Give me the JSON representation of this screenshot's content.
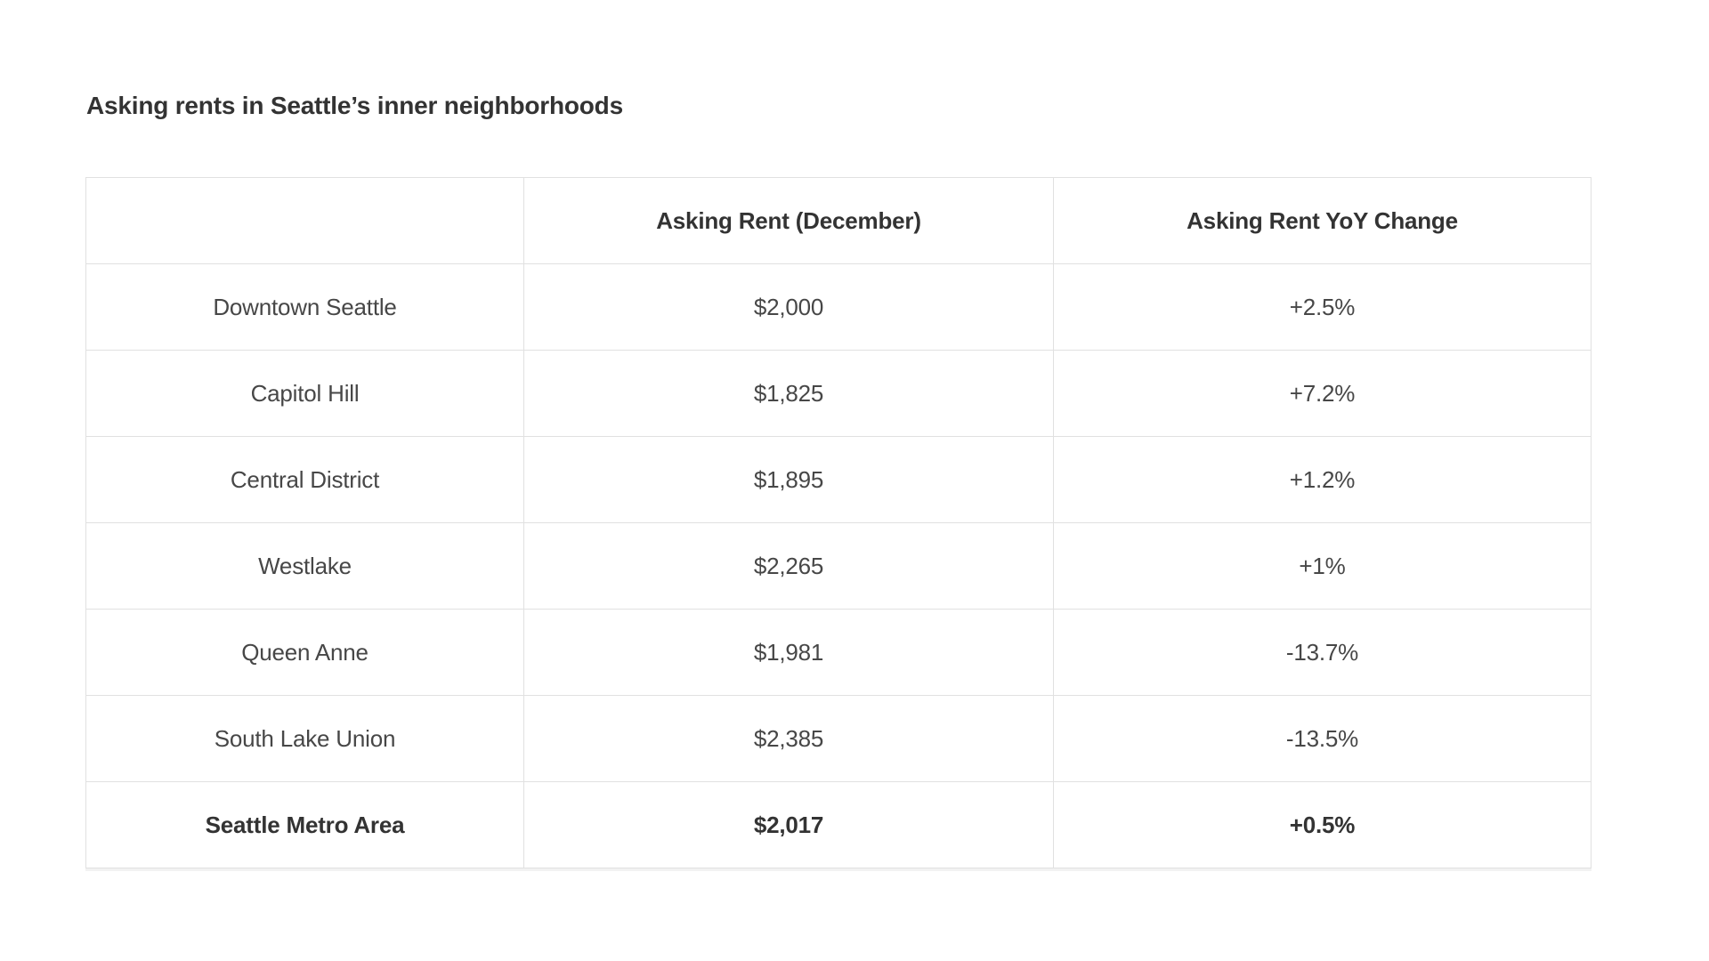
{
  "title": "Asking rents in Seattle’s inner neighborhoods",
  "table": {
    "columns": [
      "",
      "Asking Rent (December)",
      "Asking Rent YoY Change"
    ],
    "rows": [
      {
        "name": "Downtown Seattle",
        "rent": "$2,000",
        "yoy": "+2.5%",
        "bold": false
      },
      {
        "name": "Capitol Hill",
        "rent": "$1,825",
        "yoy": "+7.2%",
        "bold": false
      },
      {
        "name": "Central District",
        "rent": "$1,895",
        "yoy": "+1.2%",
        "bold": false
      },
      {
        "name": "Westlake",
        "rent": "$2,265",
        "yoy": "+1%",
        "bold": false
      },
      {
        "name": "Queen Anne",
        "rent": "$1,981",
        "yoy": "-13.7%",
        "bold": false
      },
      {
        "name": "South Lake Union",
        "rent": "$2,385",
        "yoy": "-13.5%",
        "bold": false
      },
      {
        "name": "Seattle Metro Area",
        "rent": "$2,017",
        "yoy": "+0.5%",
        "bold": true
      }
    ]
  },
  "colors": {
    "background": "#ffffff",
    "title_text": "#333333",
    "body_text": "#474747",
    "header_text": "#333333",
    "border": "#e1e1e1"
  },
  "chart_data": {
    "type": "table",
    "title": "Asking rents in Seattle’s inner neighborhoods",
    "columns": [
      "",
      "Asking Rent (December)",
      "Asking Rent YoY Change"
    ],
    "rows": [
      {
        "neighborhood": "Downtown Seattle",
        "asking_rent_usd": 2000,
        "yoy_change_pct": 2.5
      },
      {
        "neighborhood": "Capitol Hill",
        "asking_rent_usd": 1825,
        "yoy_change_pct": 7.2
      },
      {
        "neighborhood": "Central District",
        "asking_rent_usd": 1895,
        "yoy_change_pct": 1.2
      },
      {
        "neighborhood": "Westlake",
        "asking_rent_usd": 2265,
        "yoy_change_pct": 1.0
      },
      {
        "neighborhood": "Queen Anne",
        "asking_rent_usd": 1981,
        "yoy_change_pct": -13.7
      },
      {
        "neighborhood": "South Lake Union",
        "asking_rent_usd": 2385,
        "yoy_change_pct": -13.5
      },
      {
        "neighborhood": "Seattle Metro Area",
        "asking_rent_usd": 2017,
        "yoy_change_pct": 0.5
      }
    ],
    "layout": {
      "grid": true,
      "cell_alignment": "center",
      "last_row_emphasis": true
    }
  }
}
